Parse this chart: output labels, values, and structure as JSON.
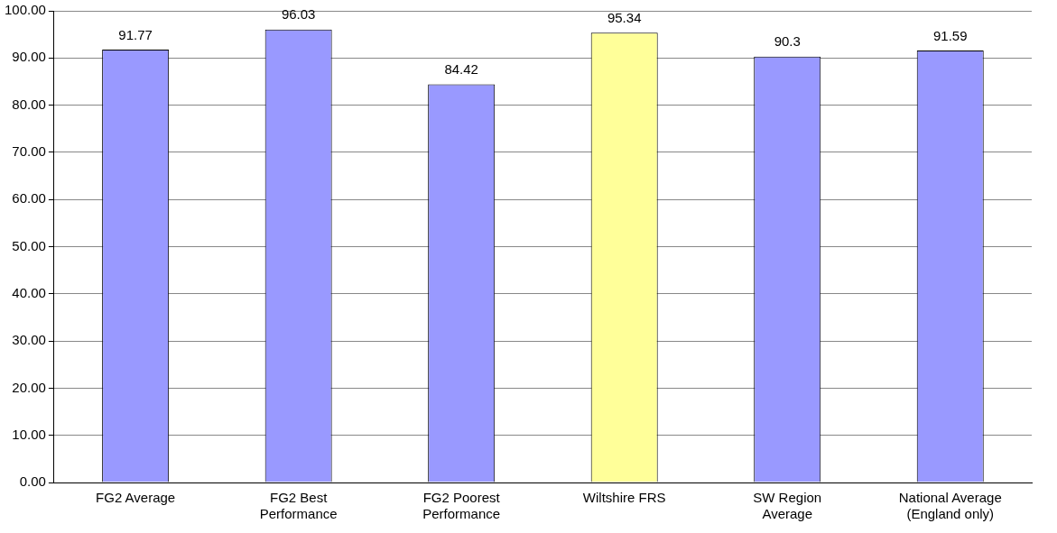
{
  "chart_data": {
    "type": "bar",
    "categories": [
      "FG2 Average",
      "FG2 Best Performance",
      "FG2 Poorest Performance",
      "Wiltshire FRS",
      "SW Region Average",
      "National Average (England only)"
    ],
    "values": [
      91.77,
      96.03,
      84.42,
      95.34,
      90.3,
      91.59
    ],
    "colors": [
      "#9999ff",
      "#9999ff",
      "#9999ff",
      "#ffff99",
      "#9999ff",
      "#9999ff"
    ],
    "ylim": [
      0,
      100
    ],
    "yticks": [
      {
        "value": 0,
        "label": "0.00"
      },
      {
        "value": 10,
        "label": "10.00"
      },
      {
        "value": 20,
        "label": "20.00"
      },
      {
        "value": 30,
        "label": "30.00"
      },
      {
        "value": 40,
        "label": "40.00"
      },
      {
        "value": 50,
        "label": "50.00"
      },
      {
        "value": 60,
        "label": "60.00"
      },
      {
        "value": 70,
        "label": "70.00"
      },
      {
        "value": 80,
        "label": "80.00"
      },
      {
        "value": 90,
        "label": "90.00"
      },
      {
        "value": 100,
        "label": "100.00"
      }
    ],
    "grid": "y",
    "data_labels": true,
    "legend": false
  }
}
